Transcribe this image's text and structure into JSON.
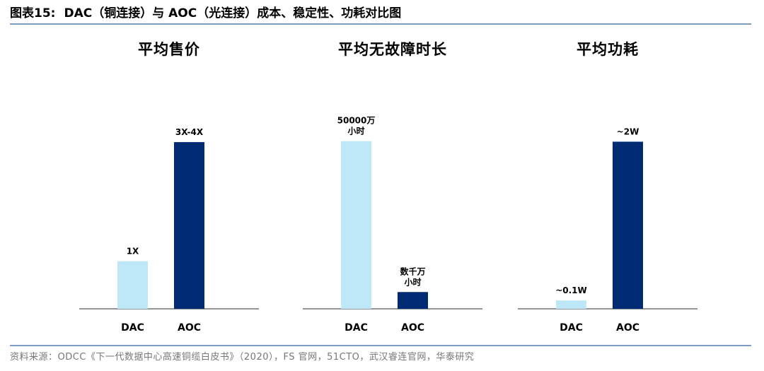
{
  "header": {
    "figure_label": "图表15:",
    "title": "DAC（铜连接）与 AOC（光连接）成本、稳定性、功耗对比图"
  },
  "source": "资料来源：ODCC《下一代数据中心高速铜缆白皮书》（2020），FS 官网，51CTO，武汉睿连官网，华泰研究",
  "colors": {
    "DAC": "#bee8f8",
    "AOC": "#002b73",
    "rule": "#7d9cc0"
  },
  "chart_data": [
    {
      "type": "bar",
      "title": "平均售价",
      "categories": [
        "DAC",
        "AOC"
      ],
      "values": [
        1,
        3.5
      ],
      "data_labels": [
        [
          "1X"
        ],
        [
          "3X-4X"
        ]
      ],
      "ylim": [
        0,
        5
      ]
    },
    {
      "type": "bar",
      "title": "平均无故障时长",
      "categories": [
        "DAC",
        "AOC"
      ],
      "values": [
        50000,
        5000
      ],
      "data_labels": [
        [
          "50000万",
          "小时"
        ],
        [
          "数千万",
          "小时"
        ]
      ],
      "ylim": [
        0,
        71000
      ]
    },
    {
      "type": "bar",
      "title": "平均功耗",
      "categories": [
        "DAC",
        "AOC"
      ],
      "values": [
        0.1,
        2
      ],
      "data_labels": [
        [
          "~0.1W"
        ],
        [
          "~2W"
        ]
      ],
      "ylim": [
        0,
        2.85
      ]
    }
  ]
}
